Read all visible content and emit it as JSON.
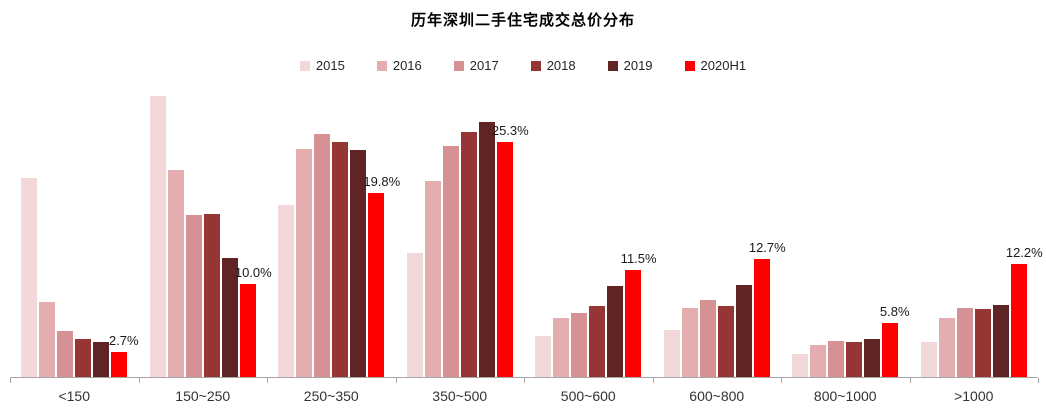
{
  "chart_data": {
    "type": "bar",
    "title": "历年深圳二手住宅成交总价分布",
    "xlabel": "",
    "ylabel": "",
    "ylim": [
      0,
      32
    ],
    "grid": false,
    "legend_position": "top",
    "value_label_series": "2020H1",
    "categories": [
      "<150",
      "150~250",
      "250~350",
      "350~500",
      "500~600",
      "600~800",
      "800~1000",
      ">1000"
    ],
    "series": [
      {
        "name": "2015",
        "color": "#f3d8da",
        "values": [
          21.4,
          30.2,
          18.5,
          13.3,
          4.4,
          5.1,
          2.5,
          3.8
        ]
      },
      {
        "name": "2016",
        "color": "#e4aeb1",
        "values": [
          8.1,
          22.3,
          24.5,
          21.1,
          6.3,
          7.4,
          3.4,
          6.3
        ]
      },
      {
        "name": "2017",
        "color": "#d69194",
        "values": [
          4.9,
          17.4,
          26.1,
          24.8,
          6.9,
          8.3,
          3.9,
          7.4
        ]
      },
      {
        "name": "2018",
        "color": "#963634",
        "values": [
          4.1,
          17.5,
          25.3,
          26.3,
          7.6,
          7.6,
          3.8,
          7.3
        ]
      },
      {
        "name": "2019",
        "color": "#5f2423",
        "values": [
          3.8,
          12.8,
          24.4,
          27.4,
          9.8,
          9.9,
          4.1,
          7.7
        ]
      },
      {
        "name": "2020H1",
        "color": "#fe0000",
        "values": [
          2.7,
          10.0,
          19.8,
          25.3,
          11.5,
          12.7,
          5.8,
          12.2
        ],
        "labels": [
          "2.7%",
          "10.0%",
          "19.8%",
          "25.3%",
          "11.5%",
          "12.7%",
          "5.8%",
          "12.2%"
        ]
      }
    ]
  }
}
